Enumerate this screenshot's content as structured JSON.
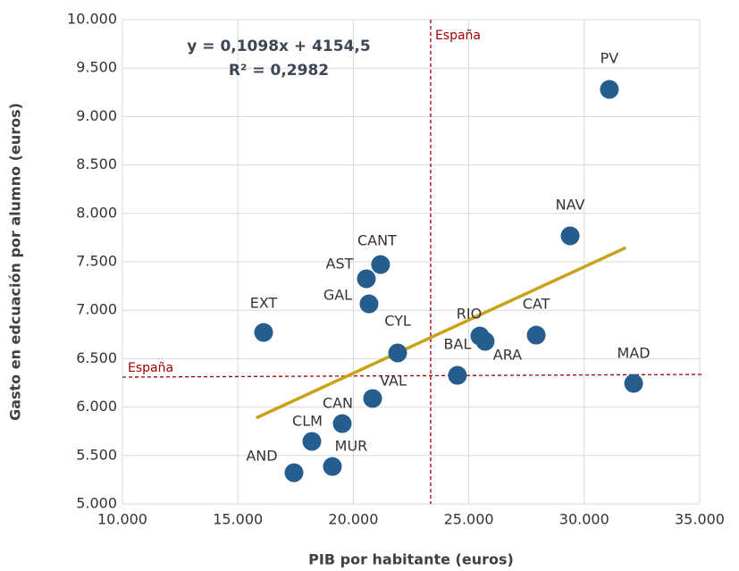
{
  "chart_data": {
    "type": "scatter",
    "xlabel": "PIB por habitante (euros)",
    "ylabel": "Gasto en edcuación por alumno (euros)",
    "xlim": [
      10000,
      35000
    ],
    "xticks": [
      {
        "value": 10000,
        "label": "10.000"
      },
      {
        "value": 15000,
        "label": "15.000"
      },
      {
        "value": 20000,
        "label": "20.000"
      },
      {
        "value": 25000,
        "label": "25.000"
      },
      {
        "value": 30000,
        "label": "30.000"
      },
      {
        "value": 35000,
        "label": "35.000"
      }
    ],
    "ylim": [
      5000,
      10000
    ],
    "yticks": [
      {
        "value": 5000,
        "label": "5.000"
      },
      {
        "value": 5500,
        "label": "5.500"
      },
      {
        "value": 6000,
        "label": "6.000"
      },
      {
        "value": 6500,
        "label": "6.500"
      },
      {
        "value": 7000,
        "label": "7.000"
      },
      {
        "value": 7500,
        "label": "7.500"
      },
      {
        "value": 8000,
        "label": "8.000"
      },
      {
        "value": 8500,
        "label": "8.500"
      },
      {
        "value": 9000,
        "label": "9.000"
      },
      {
        "value": 9500,
        "label": "9.500"
      },
      {
        "value": 10000,
        "label": "10.000"
      }
    ],
    "grid": true,
    "color": "#265d8f",
    "labels": [
      "PV",
      "NAV",
      "CANT",
      "AST",
      "GAL",
      "EXT",
      "CYL",
      "RIO",
      "ARA",
      "CAT",
      "BAL",
      "MAD",
      "VAL",
      "CAN",
      "CLM",
      "MUR",
      "AND"
    ],
    "x": [
      31090,
      29390,
      21180,
      20565,
      20680,
      16115,
      21920,
      25480,
      25710,
      27920,
      24510,
      32140,
      20836,
      19520,
      18204,
      19094,
      17430
    ],
    "y": [
      9280,
      7768,
      7472,
      7325,
      7066,
      6771,
      6559,
      6734,
      6679,
      6743,
      6328,
      6245,
      6089,
      5830,
      5646,
      5387,
      5323
    ],
    "trendline": {
      "x": [
        15800,
        31800
      ],
      "y": [
        5889,
        7646
      ],
      "color": "#c9a21a",
      "equation": "y = 0,1098x + 4154,5",
      "r2": "R² = 0,2982"
    },
    "reference": {
      "x": 23350,
      "y": 6310,
      "label": "España",
      "color": "#a00000"
    }
  }
}
